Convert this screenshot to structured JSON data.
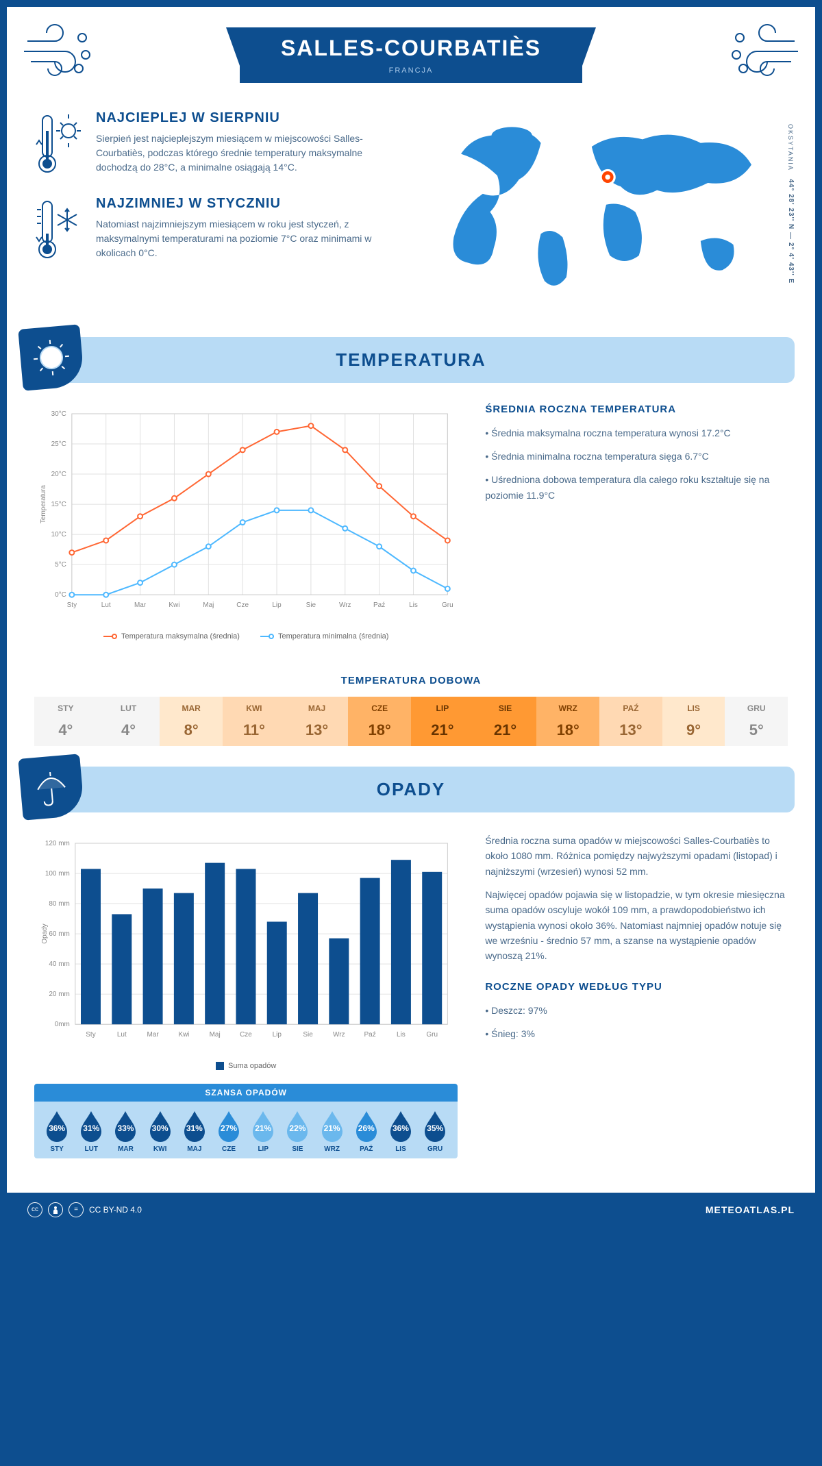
{
  "header": {
    "city": "SALLES-COURBATIÈS",
    "country": "FRANCJA"
  },
  "coords": {
    "region": "OKSYTANIA",
    "lat_lon": "44° 28' 23'' N — 2° 4' 43'' E"
  },
  "facts": {
    "hot": {
      "title": "NAJCIEPLEJ W SIERPNIU",
      "text": "Sierpień jest najcieplejszym miesiącem w miejscowości Salles-Courbatiès, podczas którego średnie temperatury maksymalne dochodzą do 28°C, a minimalne osiągają 14°C."
    },
    "cold": {
      "title": "NAJZIMNIEJ W STYCZNIU",
      "text": "Natomiast najzimniejszym miesiącem w roku jest styczeń, z maksymalnymi temperaturami na poziomie 7°C oraz minimami w okolicach 0°C."
    }
  },
  "temp_section": {
    "title": "TEMPERATURA",
    "chart": {
      "type": "line",
      "months": [
        "Sty",
        "Lut",
        "Mar",
        "Kwi",
        "Maj",
        "Cze",
        "Lip",
        "Sie",
        "Wrz",
        "Paź",
        "Lis",
        "Gru"
      ],
      "y_label": "Temperatura",
      "y_ticks": [
        "0°C",
        "5°C",
        "10°C",
        "15°C",
        "20°C",
        "25°C",
        "30°C"
      ],
      "ylim": [
        0,
        30
      ],
      "series": [
        {
          "name": "Temperatura maksymalna (średnia)",
          "color": "#ff6633",
          "values": [
            7,
            9,
            13,
            16,
            20,
            24,
            27,
            28,
            24,
            18,
            13,
            9
          ]
        },
        {
          "name": "Temperatura minimalna (średnia)",
          "color": "#4db8ff",
          "values": [
            0,
            0,
            2,
            5,
            8,
            12,
            14,
            14,
            11,
            8,
            4,
            1
          ]
        }
      ],
      "grid_color": "#e0e0e0",
      "marker": "circle"
    },
    "side": {
      "title": "ŚREDNIA ROCZNA TEMPERATURA",
      "bullets": [
        "Średnia maksymalna roczna temperatura wynosi 17.2°C",
        "Średnia minimalna roczna temperatura sięga 6.7°C",
        "Uśredniona dobowa temperatura dla całego roku kształtuje się na poziomie 11.9°C"
      ]
    },
    "daily": {
      "title": "TEMPERATURA DOBOWA",
      "months": [
        "STY",
        "LUT",
        "MAR",
        "KWI",
        "MAJ",
        "CZE",
        "LIP",
        "SIE",
        "WRZ",
        "PAŹ",
        "LIS",
        "GRU"
      ],
      "temps": [
        "4°",
        "4°",
        "8°",
        "11°",
        "13°",
        "18°",
        "21°",
        "21°",
        "18°",
        "13°",
        "9°",
        "5°"
      ],
      "bg_colors": [
        "#f5f5f5",
        "#f5f5f5",
        "#ffe8cc",
        "#ffd9b3",
        "#ffd9b3",
        "#ffb366",
        "#ff9933",
        "#ff9933",
        "#ffb366",
        "#ffd9b3",
        "#ffe8cc",
        "#f5f5f5"
      ],
      "text_colors": [
        "#888",
        "#888",
        "#996633",
        "#996633",
        "#996633",
        "#804000",
        "#663300",
        "#663300",
        "#804000",
        "#996633",
        "#996633",
        "#888"
      ]
    }
  },
  "rain_section": {
    "title": "OPADY",
    "chart": {
      "type": "bar",
      "months": [
        "Sty",
        "Lut",
        "Mar",
        "Kwi",
        "Maj",
        "Cze",
        "Lip",
        "Sie",
        "Wrz",
        "Paź",
        "Lis",
        "Gru"
      ],
      "y_label": "Opady",
      "y_ticks": [
        "0mm",
        "20 mm",
        "40 mm",
        "60 mm",
        "80 mm",
        "100 mm",
        "120 mm"
      ],
      "ylim": [
        0,
        120
      ],
      "values": [
        103,
        73,
        90,
        87,
        107,
        103,
        68,
        87,
        57,
        97,
        109,
        101
      ],
      "bar_color": "#0d4e8f",
      "legend": "Suma opadów",
      "grid_color": "#e0e0e0"
    },
    "side": {
      "p1": "Średnia roczna suma opadów w miejscowości Salles-Courbatiès to około 1080 mm. Różnica pomiędzy najwyższymi opadami (listopad) i najniższymi (wrzesień) wynosi 52 mm.",
      "p2": "Najwięcej opadów pojawia się w listopadzie, w tym okresie miesięczna suma opadów oscyluje wokół 109 mm, a prawdopodobieństwo ich wystąpienia wynosi około 36%. Natomiast najmniej opadów notuje się we wrześniu - średnio 57 mm, a szanse na wystąpienie opadów wynoszą 21%.",
      "type_title": "ROCZNE OPADY WEDŁUG TYPU",
      "type_bullets": [
        "Deszcz: 97%",
        "Śnieg: 3%"
      ]
    },
    "chance": {
      "title": "SZANSA OPADÓW",
      "months": [
        "STY",
        "LUT",
        "MAR",
        "KWI",
        "MAJ",
        "CZE",
        "LIP",
        "SIE",
        "WRZ",
        "PAŹ",
        "LIS",
        "GRU"
      ],
      "pcts": [
        "36%",
        "31%",
        "33%",
        "30%",
        "31%",
        "27%",
        "21%",
        "22%",
        "21%",
        "26%",
        "36%",
        "35%"
      ],
      "drop_colors": [
        "#0d4e8f",
        "#0d4e8f",
        "#0d4e8f",
        "#0d4e8f",
        "#0d4e8f",
        "#2a8cd8",
        "#6bb8ed",
        "#6bb8ed",
        "#6bb8ed",
        "#2a8cd8",
        "#0d4e8f",
        "#0d4e8f"
      ]
    }
  },
  "footer": {
    "license": "CC BY-ND 4.0",
    "brand": "METEOATLAS.PL"
  }
}
